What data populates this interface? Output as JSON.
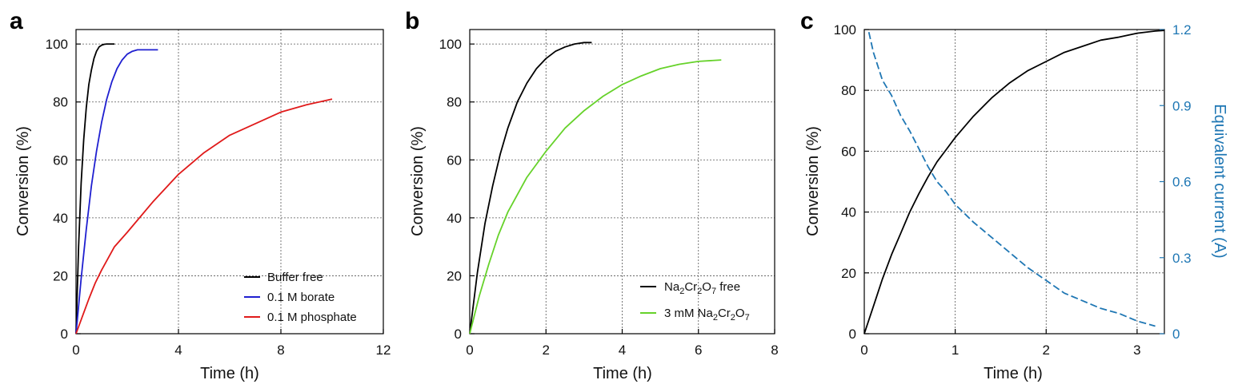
{
  "chart_data": [
    {
      "type": "line",
      "panel": "a",
      "xlabel": "Time (h)",
      "ylabel": "Conversion (%)",
      "xlim": [
        0,
        12
      ],
      "ylim": [
        0,
        105
      ],
      "xticks": [
        0,
        4,
        8,
        12
      ],
      "yticks": [
        0,
        20,
        40,
        60,
        80,
        100
      ],
      "grid": true,
      "legend_position": "bottom-right",
      "series": [
        {
          "name": "Buffer free",
          "color": "#000000",
          "x": [
            0,
            0.1,
            0.2,
            0.3,
            0.4,
            0.5,
            0.6,
            0.7,
            0.8,
            0.9,
            1.0,
            1.1,
            1.2,
            1.5
          ],
          "y": [
            0,
            30,
            52,
            67,
            78,
            86,
            91,
            95,
            97.5,
            99,
            99.6,
            99.9,
            100,
            100
          ]
        },
        {
          "name": "0.1 M borate",
          "color": "#1f1fd0",
          "x": [
            0,
            0.2,
            0.4,
            0.6,
            0.8,
            1.0,
            1.2,
            1.4,
            1.6,
            1.8,
            2.0,
            2.2,
            2.4,
            2.6,
            2.8,
            3.2
          ],
          "y": [
            0,
            19,
            36,
            51,
            63,
            73,
            81,
            87,
            91.5,
            94.5,
            96.5,
            97.5,
            98,
            98,
            98,
            98
          ]
        },
        {
          "name": "0.1 M phosphate",
          "color": "#e01a1a",
          "x": [
            0,
            0.25,
            0.5,
            0.75,
            1,
            1.5,
            2,
            3,
            4,
            5,
            6,
            7,
            8,
            9,
            10
          ],
          "y": [
            0,
            6,
            12,
            17.5,
            22,
            30,
            35,
            45.5,
            55,
            62.5,
            68.5,
            72.5,
            76.5,
            79,
            81
          ]
        }
      ]
    },
    {
      "type": "line",
      "panel": "b",
      "xlabel": "Time (h)",
      "ylabel": "Conversion (%)",
      "xlim": [
        0,
        8
      ],
      "ylim": [
        0,
        105
      ],
      "xticks": [
        0,
        2,
        4,
        6,
        8
      ],
      "yticks": [
        0,
        20,
        40,
        60,
        80,
        100
      ],
      "grid": true,
      "legend_position": "bottom-right",
      "series": [
        {
          "name": "Na2Cr2O7 free",
          "color": "#000000",
          "x": [
            0,
            0.2,
            0.4,
            0.6,
            0.8,
            1.0,
            1.25,
            1.5,
            1.75,
            2.0,
            2.25,
            2.5,
            2.75,
            3.0,
            3.2
          ],
          "y": [
            0,
            21,
            38,
            51,
            62,
            71,
            80,
            86.5,
            91.5,
            95,
            97.5,
            99,
            100,
            100.5,
            100.5
          ]
        },
        {
          "name": "3 mM Na2Cr2O7",
          "color": "#66d22a",
          "x": [
            0,
            0.25,
            0.5,
            0.75,
            1.0,
            1.5,
            2.0,
            2.5,
            3.0,
            3.5,
            4.0,
            4.5,
            5.0,
            5.5,
            6.0,
            6.6
          ],
          "y": [
            0,
            13,
            24,
            34,
            42,
            54,
            63,
            71,
            77,
            82,
            86,
            89,
            91.5,
            93,
            94,
            94.5
          ]
        }
      ]
    },
    {
      "type": "line",
      "panel": "c",
      "xlabel": "Time (h)",
      "ylabel": "Conversion (%)",
      "y2label": "Equivalent current (A)",
      "xlim": [
        0,
        3.3
      ],
      "ylim": [
        0,
        100
      ],
      "y2lim": [
        0,
        1.2
      ],
      "xticks": [
        0,
        1,
        2,
        3
      ],
      "yticks": [
        0,
        20,
        40,
        60,
        80,
        100
      ],
      "y2ticks": [
        0,
        0.3,
        0.6,
        0.9,
        1.2
      ],
      "y2ticklabels": [
        "0",
        "0.3",
        "0.6",
        "0.9",
        "1.2"
      ],
      "grid": true,
      "series": [
        {
          "axis": "left",
          "color": "#000000",
          "dash": false,
          "x": [
            0,
            0.1,
            0.2,
            0.3,
            0.4,
            0.5,
            0.6,
            0.7,
            0.8,
            0.9,
            1.0,
            1.2,
            1.4,
            1.6,
            1.8,
            2.0,
            2.2,
            2.4,
            2.6,
            2.8,
            3.0,
            3.2,
            3.3
          ],
          "y": [
            0,
            9,
            18,
            26,
            33,
            40,
            46,
            51.5,
            56.5,
            60.5,
            64.5,
            71.5,
            77.5,
            82.5,
            86.5,
            89.5,
            92.5,
            94.5,
            96.5,
            97.5,
            98.8,
            99.5,
            99.7
          ]
        },
        {
          "axis": "right",
          "color": "#1f77b4",
          "dash": true,
          "x": [
            0.05,
            0.1,
            0.2,
            0.3,
            0.4,
            0.5,
            0.6,
            0.7,
            0.8,
            0.9,
            1.0,
            1.2,
            1.4,
            1.6,
            1.8,
            2.0,
            2.2,
            2.4,
            2.6,
            2.8,
            3.0,
            3.2
          ],
          "y": [
            1.19,
            1.11,
            1.0,
            0.94,
            0.86,
            0.8,
            0.73,
            0.66,
            0.6,
            0.56,
            0.51,
            0.44,
            0.38,
            0.32,
            0.26,
            0.21,
            0.16,
            0.13,
            0.1,
            0.08,
            0.05,
            0.03
          ]
        }
      ]
    }
  ]
}
